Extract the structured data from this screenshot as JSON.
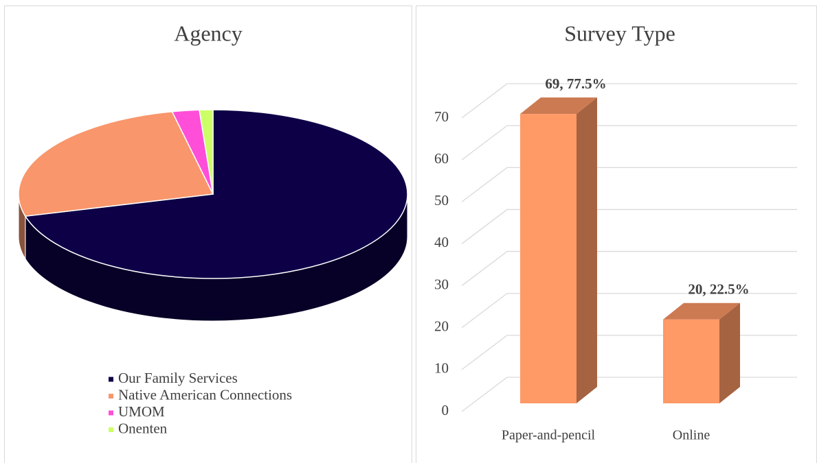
{
  "chart_data": [
    {
      "type": "pie",
      "title": "Agency",
      "categories": [
        "Our Family Services",
        "Native American Connections",
        "UMOM",
        "Onenten"
      ],
      "values": [
        63,
        23,
        2,
        1
      ],
      "colors": [
        "#0d0047",
        "#f9966b",
        "#ff4fd8",
        "#ccff66"
      ],
      "legend": "bottom"
    },
    {
      "type": "bar",
      "title": "Survey Type",
      "categories": [
        "Paper-and-pencil",
        "Online"
      ],
      "values": [
        69,
        20
      ],
      "value_labels": [
        "69, 77.5%",
        "20, 22.5%"
      ],
      "color": "#ff9966",
      "ylim": [
        0,
        70
      ],
      "yticks": [
        0,
        10,
        20,
        30,
        40,
        50,
        60,
        70
      ],
      "grid": true
    }
  ]
}
